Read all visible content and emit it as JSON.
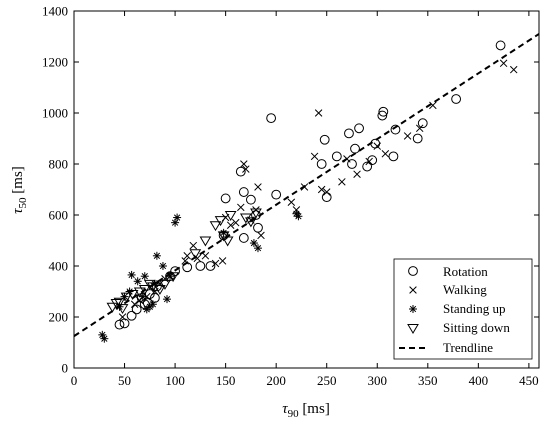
{
  "chart_data": {
    "type": "scatter",
    "xlabel": {
      "symbol": "τ",
      "subscript": "90",
      "unit": " [ms]"
    },
    "ylabel": {
      "symbol": "τ",
      "subscript": "50",
      "unit": " [ms]"
    },
    "xlim": [
      0,
      460
    ],
    "ylim": [
      0,
      1400
    ],
    "xticks": [
      0,
      50,
      100,
      150,
      200,
      250,
      300,
      350,
      400,
      450
    ],
    "yticks": [
      0,
      200,
      400,
      600,
      800,
      1000,
      1200,
      1400
    ],
    "grid": false,
    "legend_position": "bottom-right",
    "series": [
      {
        "name": "Rotation",
        "marker": "circle",
        "points": [
          [
            45,
            170
          ],
          [
            50,
            175
          ],
          [
            57,
            205
          ],
          [
            62,
            230
          ],
          [
            67,
            275
          ],
          [
            70,
            250
          ],
          [
            73,
            255
          ],
          [
            75,
            290
          ],
          [
            80,
            275
          ],
          [
            82,
            320
          ],
          [
            95,
            360
          ],
          [
            100,
            380
          ],
          [
            112,
            395
          ],
          [
            125,
            400
          ],
          [
            135,
            400
          ],
          [
            148,
            520
          ],
          [
            150,
            665
          ],
          [
            165,
            770
          ],
          [
            168,
            690
          ],
          [
            168,
            510
          ],
          [
            175,
            660
          ],
          [
            180,
            600
          ],
          [
            182,
            550
          ],
          [
            195,
            980
          ],
          [
            200,
            680
          ],
          [
            245,
            800
          ],
          [
            248,
            895
          ],
          [
            250,
            670
          ],
          [
            260,
            830
          ],
          [
            272,
            920
          ],
          [
            275,
            800
          ],
          [
            278,
            860
          ],
          [
            282,
            940
          ],
          [
            290,
            790
          ],
          [
            295,
            815
          ],
          [
            298,
            880
          ],
          [
            305,
            990
          ],
          [
            306,
            1005
          ],
          [
            316,
            830
          ],
          [
            318,
            935
          ],
          [
            340,
            900
          ],
          [
            345,
            960
          ],
          [
            378,
            1055
          ],
          [
            422,
            1265
          ]
        ]
      },
      {
        "name": "Walking",
        "marker": "x",
        "points": [
          [
            48,
            200
          ],
          [
            60,
            250
          ],
          [
            65,
            265
          ],
          [
            72,
            280
          ],
          [
            80,
            300
          ],
          [
            85,
            330
          ],
          [
            90,
            350
          ],
          [
            95,
            360
          ],
          [
            110,
            420
          ],
          [
            112,
            440
          ],
          [
            118,
            480
          ],
          [
            122,
            430
          ],
          [
            130,
            440
          ],
          [
            140,
            410
          ],
          [
            147,
            420
          ],
          [
            150,
            590
          ],
          [
            155,
            560
          ],
          [
            160,
            570
          ],
          [
            165,
            630
          ],
          [
            168,
            800
          ],
          [
            170,
            780
          ],
          [
            175,
            580
          ],
          [
            180,
            620
          ],
          [
            182,
            710
          ],
          [
            185,
            520
          ],
          [
            215,
            650
          ],
          [
            220,
            620
          ],
          [
            228,
            710
          ],
          [
            238,
            830
          ],
          [
            242,
            1000
          ],
          [
            245,
            700
          ],
          [
            250,
            690
          ],
          [
            265,
            730
          ],
          [
            270,
            820
          ],
          [
            280,
            760
          ],
          [
            292,
            810
          ],
          [
            300,
            870
          ],
          [
            308,
            840
          ],
          [
            330,
            910
          ],
          [
            342,
            940
          ],
          [
            355,
            1030
          ],
          [
            425,
            1195
          ],
          [
            435,
            1170
          ]
        ]
      },
      {
        "name": "Standing up",
        "marker": "asterisk",
        "points": [
          [
            28,
            130
          ],
          [
            30,
            115
          ],
          [
            45,
            240
          ],
          [
            50,
            280
          ],
          [
            55,
            300
          ],
          [
            57,
            365
          ],
          [
            63,
            340
          ],
          [
            68,
            280
          ],
          [
            70,
            360
          ],
          [
            72,
            230
          ],
          [
            75,
            240
          ],
          [
            78,
            250
          ],
          [
            80,
            330
          ],
          [
            82,
            440
          ],
          [
            88,
            400
          ],
          [
            92,
            270
          ],
          [
            95,
            360
          ],
          [
            100,
            570
          ],
          [
            102,
            590
          ],
          [
            148,
            530
          ],
          [
            178,
            490
          ],
          [
            182,
            470
          ],
          [
            220,
            605
          ],
          [
            222,
            595
          ]
        ]
      },
      {
        "name": "Sitting down",
        "marker": "triangle-down",
        "points": [
          [
            38,
            240
          ],
          [
            42,
            255
          ],
          [
            45,
            260
          ],
          [
            48,
            235
          ],
          [
            52,
            280
          ],
          [
            58,
            290
          ],
          [
            65,
            300
          ],
          [
            70,
            310
          ],
          [
            75,
            330
          ],
          [
            78,
            320
          ],
          [
            85,
            310
          ],
          [
            90,
            330
          ],
          [
            98,
            360
          ],
          [
            120,
            450
          ],
          [
            130,
            500
          ],
          [
            140,
            560
          ],
          [
            145,
            580
          ],
          [
            148,
            520
          ],
          [
            152,
            500
          ],
          [
            155,
            600
          ],
          [
            170,
            590
          ],
          [
            175,
            575
          ],
          [
            180,
            610
          ]
        ]
      }
    ],
    "trendline": {
      "name": "Trendline",
      "x": [
        0,
        460
      ],
      "y": [
        125,
        1310
      ],
      "style": "dashed"
    }
  }
}
